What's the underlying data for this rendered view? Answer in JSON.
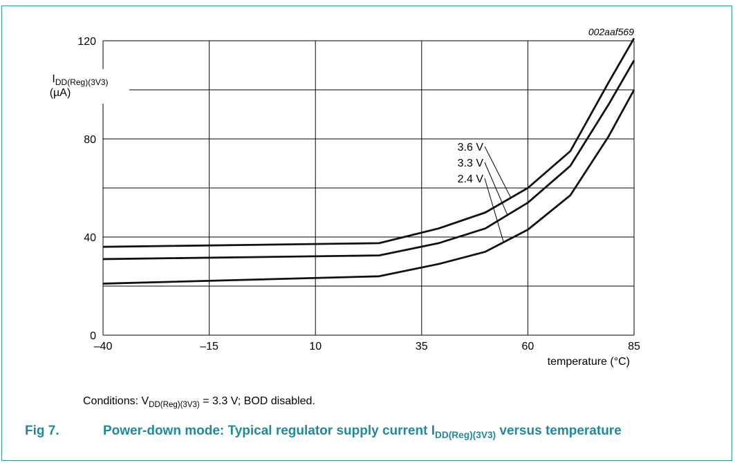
{
  "chart_data": {
    "type": "line",
    "id_code": "002aaf569",
    "ylabel_main": "I",
    "ylabel_sub": "DD(Reg)(3V3)",
    "yunit": "(µA)",
    "xlabel": "temperature (°C)",
    "xlim": [
      -40,
      85
    ],
    "ylim": [
      0,
      120
    ],
    "x_ticks": [
      -40,
      -15,
      10,
      35,
      60,
      85
    ],
    "x_tick_labels": [
      "–40",
      "–15",
      "10",
      "35",
      "60",
      "85"
    ],
    "y_ticks": [
      0,
      40,
      80,
      120
    ],
    "y_tick_labels": [
      "0",
      "40",
      "80",
      "120"
    ],
    "y_gridlines": [
      0,
      20,
      40,
      60,
      80,
      100,
      120
    ],
    "grid": true,
    "series": [
      {
        "name": "3.6 V",
        "x": [
          -40,
          25,
          39,
          50,
          60,
          70,
          79,
          85
        ],
        "y": [
          36,
          37.5,
          43.5,
          50,
          60,
          75,
          103,
          121
        ]
      },
      {
        "name": "3.3 V",
        "x": [
          -40,
          25,
          39,
          50,
          60,
          70,
          79,
          85
        ],
        "y": [
          31,
          32.5,
          37.5,
          43.5,
          54,
          69,
          94,
          112
        ]
      },
      {
        "name": "2.4 V",
        "x": [
          -40,
          25,
          39,
          50,
          60,
          70,
          79,
          85
        ],
        "y": [
          21,
          24,
          29,
          34,
          43,
          57,
          81,
          100
        ]
      }
    ]
  },
  "conditions": {
    "prefix": "Conditions: V",
    "sub": "DD(Reg)(3V3)",
    "suffix": " = 3.3 V; BOD disabled."
  },
  "caption": {
    "fig_label": "Fig 7.",
    "text_pre": "Power-down mode: Typical regulator supply current I",
    "text_sub": "DD(Reg)(3V3)",
    "text_post": " versus temperature"
  }
}
